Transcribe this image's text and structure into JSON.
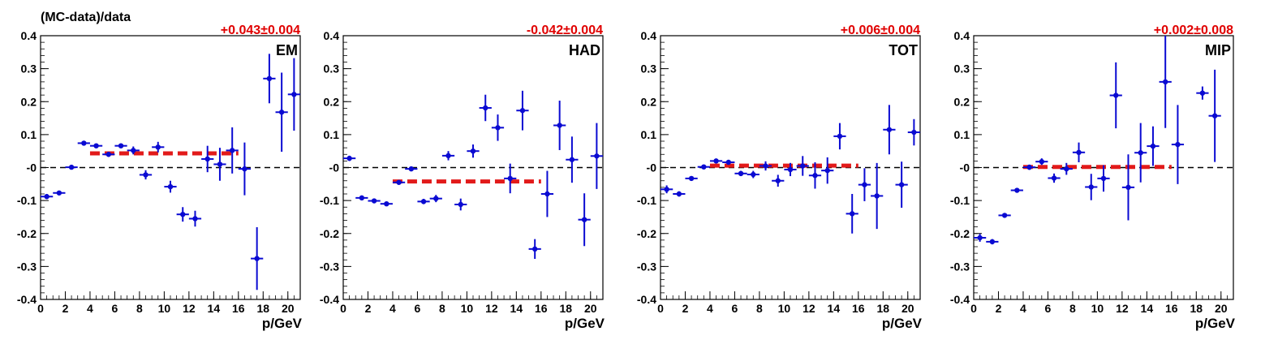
{
  "figure": {
    "ytitle": "(MC-data)/data",
    "xlabel": "p/GeV"
  },
  "chart_data": [
    {
      "type": "scatter",
      "label": "EM",
      "fit_text": "+0.043±0.004",
      "fit_value": 0.043,
      "fit_range": [
        4,
        16
      ],
      "xlim": [
        0,
        21
      ],
      "ylim": [
        -0.4,
        0.4
      ],
      "xticks": [
        0,
        2,
        4,
        6,
        8,
        10,
        12,
        14,
        16,
        18,
        20
      ],
      "yticks": [
        0.4,
        0.3,
        0.2,
        0.1,
        0,
        -0.1,
        -0.2,
        -0.3,
        -0.4
      ],
      "ytick_labels": [
        "0.4",
        "0.3",
        "0.2",
        "0.1",
        "-0",
        "-0.1",
        "-0.2",
        "-0.3",
        "-0.4"
      ],
      "grid": false,
      "x": [
        0.5,
        1.5,
        2.5,
        3.5,
        4.5,
        5.5,
        6.5,
        7.5,
        8.5,
        9.5,
        10.5,
        11.5,
        12.5,
        13.5,
        14.5,
        15.5,
        16.5,
        17.5,
        18.5,
        19.5,
        20.5
      ],
      "y": [
        -0.088,
        -0.077,
        0.001,
        0.074,
        0.066,
        0.04,
        0.066,
        0.052,
        -0.022,
        0.062,
        -0.058,
        -0.142,
        -0.155,
        0.026,
        0.01,
        0.052,
        -0.004,
        -0.276,
        0.27,
        0.168,
        0.222
      ],
      "yerr": [
        0.008,
        0.006,
        0.004,
        0.005,
        0.006,
        0.007,
        0.007,
        0.012,
        0.014,
        0.016,
        0.018,
        0.022,
        0.024,
        0.04,
        0.05,
        0.07,
        0.08,
        0.095,
        0.075,
        0.12,
        0.11
      ]
    },
    {
      "type": "scatter",
      "label": "HAD",
      "fit_text": "-0.042±0.004",
      "fit_value": -0.042,
      "fit_range": [
        4,
        16
      ],
      "xlim": [
        0,
        21
      ],
      "ylim": [
        -0.4,
        0.4
      ],
      "xticks": [
        0,
        2,
        4,
        6,
        8,
        10,
        12,
        14,
        16,
        18,
        20
      ],
      "yticks": [
        0.4,
        0.3,
        0.2,
        0.1,
        0,
        -0.1,
        -0.2,
        -0.3,
        -0.4
      ],
      "ytick_labels": [
        "0.4",
        "0.3",
        "0.2",
        "0.1",
        "-0",
        "-0.1",
        "-0.2",
        "-0.3",
        "-0.4"
      ],
      "grid": false,
      "x": [
        0.5,
        1.5,
        2.5,
        3.5,
        4.5,
        5.5,
        6.5,
        7.5,
        8.5,
        9.5,
        10.5,
        11.5,
        12.5,
        13.5,
        14.5,
        15.5,
        16.5,
        17.5,
        18.5,
        19.5,
        20.5
      ],
      "y": [
        0.028,
        -0.092,
        -0.101,
        -0.11,
        -0.045,
        -0.004,
        -0.103,
        -0.094,
        0.036,
        -0.112,
        0.05,
        0.181,
        0.121,
        -0.033,
        0.173,
        -0.247,
        -0.08,
        0.128,
        0.024,
        -0.158,
        0.035
      ],
      "yerr": [
        0.008,
        0.005,
        0.005,
        0.005,
        0.006,
        0.006,
        0.008,
        0.011,
        0.014,
        0.018,
        0.02,
        0.04,
        0.04,
        0.045,
        0.06,
        0.03,
        0.07,
        0.075,
        0.07,
        0.08,
        0.1
      ]
    },
    {
      "type": "scatter",
      "label": "TOT",
      "fit_text": "+0.006±0.004",
      "fit_value": 0.006,
      "fit_range": [
        4,
        16
      ],
      "xlim": [
        0,
        21
      ],
      "ylim": [
        -0.4,
        0.4
      ],
      "xticks": [
        0,
        2,
        4,
        6,
        8,
        10,
        12,
        14,
        16,
        18,
        20
      ],
      "yticks": [
        0.4,
        0.3,
        0.2,
        0.1,
        0,
        -0.1,
        -0.2,
        -0.3,
        -0.4
      ],
      "ytick_labels": [
        "0.4",
        "0.3",
        "0.2",
        "0.1",
        "-0",
        "-0.1",
        "-0.2",
        "-0.3",
        "-0.4"
      ],
      "grid": false,
      "x": [
        0.5,
        1.5,
        2.5,
        3.5,
        4.5,
        5.5,
        6.5,
        7.5,
        8.5,
        9.5,
        10.5,
        11.5,
        12.5,
        13.5,
        14.5,
        15.5,
        16.5,
        17.5,
        18.5,
        19.5,
        20.5
      ],
      "y": [
        -0.066,
        -0.08,
        -0.033,
        0.002,
        0.02,
        0.016,
        -0.018,
        -0.021,
        0.005,
        -0.04,
        -0.006,
        0.005,
        -0.024,
        -0.009,
        0.095,
        -0.14,
        -0.052,
        -0.086,
        0.115,
        -0.052,
        0.107
      ],
      "yerr": [
        0.012,
        0.008,
        0.006,
        0.004,
        0.005,
        0.006,
        0.008,
        0.011,
        0.014,
        0.018,
        0.02,
        0.03,
        0.04,
        0.04,
        0.04,
        0.06,
        0.05,
        0.1,
        0.075,
        0.07,
        0.04
      ]
    },
    {
      "type": "scatter",
      "label": "MIP",
      "fit_text": "+0.002±0.008",
      "fit_value": 0.002,
      "fit_range": [
        4,
        16
      ],
      "xlim": [
        0,
        21
      ],
      "ylim": [
        -0.4,
        0.4
      ],
      "xticks": [
        0,
        2,
        4,
        6,
        8,
        10,
        12,
        14,
        16,
        18,
        20
      ],
      "yticks": [
        0.4,
        0.3,
        0.2,
        0.1,
        0,
        -0.1,
        -0.2,
        -0.3,
        -0.4
      ],
      "ytick_labels": [
        "0.4",
        "0.3",
        "0.2",
        "0.1",
        "-0",
        "-0.1",
        "-0.2",
        "-0.3",
        "-0.4"
      ],
      "grid": false,
      "x": [
        0.5,
        1.5,
        2.5,
        3.5,
        4.5,
        5.5,
        6.5,
        7.5,
        8.5,
        9.5,
        10.5,
        11.5,
        12.5,
        13.5,
        14.5,
        15.5,
        16.5,
        18.5,
        19.5
      ],
      "y": [
        -0.213,
        -0.225,
        -0.145,
        -0.069,
        0.001,
        0.018,
        -0.032,
        -0.004,
        0.046,
        -0.059,
        -0.033,
        0.219,
        -0.06,
        0.045,
        0.065,
        0.26,
        0.07,
        0.226,
        0.157
      ],
      "yerr": [
        0.012,
        0.008,
        0.006,
        0.006,
        0.008,
        0.01,
        0.014,
        0.018,
        0.03,
        0.04,
        0.04,
        0.1,
        0.1,
        0.09,
        0.06,
        0.14,
        0.12,
        0.02,
        0.14
      ]
    }
  ],
  "colors": {
    "points": "#0a0ad2",
    "fit": "#e21a1a",
    "fit_text": "#e00000",
    "axis": "#000000",
    "zero_line": "#000000"
  }
}
